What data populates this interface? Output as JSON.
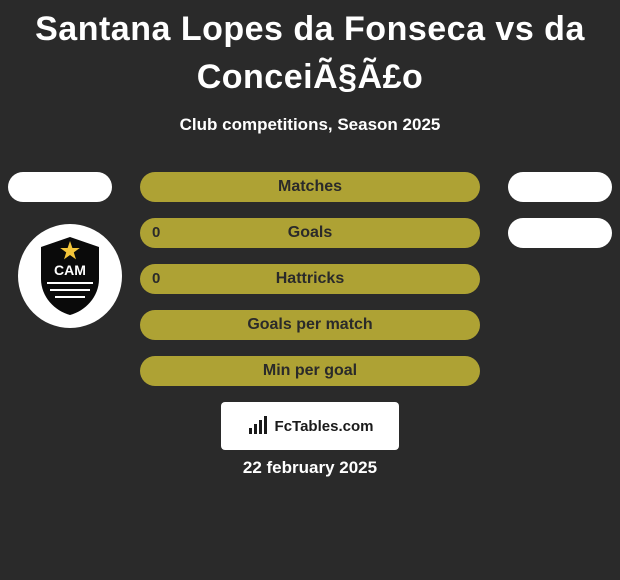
{
  "title": {
    "text": "Santana Lopes da Fonseca vs da ConceiÃ§Ã£o",
    "fontsize": 34,
    "color": "#ffffff"
  },
  "subtitle": {
    "text": "Club competitions, Season 2025",
    "fontsize": 17,
    "color": "#ffffff"
  },
  "background_color": "#2a2a2a",
  "stats": {
    "label_fontsize": 16,
    "value_fontsize": 15,
    "label_color": "#2a2a2a",
    "value_color": "#2a2a2a",
    "center_fill": "#aea234",
    "left_fill_default": "#ffffff",
    "right_fill_default": "#ffffff",
    "rows": [
      {
        "label": "Matches",
        "left_value": "",
        "right_value": "",
        "show_left": true,
        "show_right": true,
        "left_fill": "#ffffff",
        "right_fill": "#ffffff"
      },
      {
        "label": "Goals",
        "left_value": "0",
        "right_value": "",
        "show_left": false,
        "show_right": true,
        "left_fill": "#ffffff",
        "right_fill": "#ffffff"
      },
      {
        "label": "Hattricks",
        "left_value": "0",
        "right_value": "",
        "show_left": false,
        "show_right": false,
        "left_fill": "#ffffff",
        "right_fill": "#ffffff"
      },
      {
        "label": "Goals per match",
        "left_value": "",
        "right_value": "",
        "show_left": false,
        "show_right": false,
        "left_fill": "#ffffff",
        "right_fill": "#ffffff"
      },
      {
        "label": "Min per goal",
        "left_value": "",
        "right_value": "",
        "show_left": false,
        "show_right": false,
        "left_fill": "#ffffff",
        "right_fill": "#ffffff"
      }
    ]
  },
  "club_badge": {
    "bg": "#ffffff",
    "shield_fill": "#0a0a0a",
    "star_fill": "#f3c53a",
    "text": "CAM",
    "text_color": "#ffffff"
  },
  "footer": {
    "box_bg": "#ffffff",
    "text": "FcTables.com",
    "text_color": "#1a1a1a",
    "fontsize": 15,
    "icon_color": "#1a1a1a"
  },
  "date": {
    "text": "22 february 2025",
    "fontsize": 17,
    "color": "#ffffff"
  }
}
